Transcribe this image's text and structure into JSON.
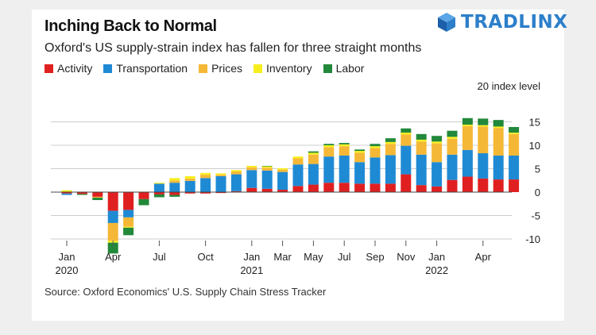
{
  "title": "Inching Back to Normal",
  "subtitle": "Oxford's US supply-strain index has fallen for three straight months",
  "source": "Source: Oxford Economics' U.S. Supply Chain Stress Tracker",
  "logo": {
    "text": "TRADLINX",
    "icon": "cube-logo-icon"
  },
  "colors": {
    "Activity": "#e02020",
    "Transportation": "#1f8ad4",
    "Prices": "#f5b836",
    "Inventory": "#f7ee1e",
    "Labor": "#22883a",
    "axis": "#cccccc",
    "zero": "#444444"
  },
  "legend": [
    "Activity",
    "Transportation",
    "Prices",
    "Inventory",
    "Labor"
  ],
  "chart_data": {
    "type": "bar",
    "stacked": true,
    "title": "Inching Back to Normal",
    "subtitle": "Oxford's US supply-strain index has fallen for three straight months",
    "ylabel": "20 index level",
    "ylim": [
      -11,
      16
    ],
    "yticks": [
      15,
      10,
      5,
      0,
      -5,
      -10
    ],
    "grid": true,
    "legend_position": "top-left",
    "x_tick_labels": [
      {
        "month": 0,
        "label": "Jan",
        "year": "2020"
      },
      {
        "month": 3,
        "label": "Apr"
      },
      {
        "month": 6,
        "label": "Jul"
      },
      {
        "month": 9,
        "label": "Oct"
      },
      {
        "month": 12,
        "label": "Jan",
        "year": "2021"
      },
      {
        "month": 14,
        "label": "Mar"
      },
      {
        "month": 16,
        "label": "May"
      },
      {
        "month": 18,
        "label": "Jul"
      },
      {
        "month": 20,
        "label": "Sep"
      },
      {
        "month": 22,
        "label": "Nov"
      },
      {
        "month": 24,
        "label": "Jan",
        "year": "2022"
      },
      {
        "month": 27,
        "label": "Apr"
      }
    ],
    "categories": [
      "2020-01",
      "2020-02",
      "2020-03",
      "2020-04",
      "2020-05",
      "2020-06",
      "2020-07",
      "2020-08",
      "2020-09",
      "2020-10",
      "2020-11",
      "2020-12",
      "2021-01",
      "2021-02",
      "2021-03",
      "2021-04",
      "2021-05",
      "2021-06",
      "2021-07",
      "2021-08",
      "2021-09",
      "2021-10",
      "2021-11",
      "2021-12",
      "2022-01",
      "2022-02",
      "2022-03",
      "2022-04",
      "2022-05",
      "2022-06"
    ],
    "series": [
      {
        "name": "Activity",
        "values": [
          -0.3,
          -0.4,
          -1.0,
          -4.0,
          -3.8,
          -1.5,
          -0.5,
          -0.6,
          -0.3,
          -0.3,
          -0.2,
          0.2,
          0.9,
          0.7,
          0.5,
          1.3,
          1.6,
          2.0,
          2.0,
          1.8,
          1.8,
          1.8,
          3.8,
          1.5,
          1.2,
          2.6,
          3.3,
          2.9,
          2.7,
          2.7
        ]
      },
      {
        "name": "Transportation",
        "values": [
          -0.3,
          0.0,
          0.0,
          -2.6,
          -1.6,
          0.0,
          1.8,
          2.0,
          2.4,
          3.0,
          3.4,
          3.6,
          3.8,
          3.9,
          3.8,
          4.6,
          4.4,
          5.6,
          5.8,
          4.6,
          5.6,
          6.1,
          6.1,
          6.5,
          5.2,
          5.4,
          5.7,
          5.4,
          5.1,
          5.1
        ]
      },
      {
        "name": "Prices",
        "values": [
          0.0,
          0.0,
          -0.2,
          -3.8,
          -2.0,
          0.0,
          0.0,
          0.5,
          0.5,
          0.7,
          0.3,
          0.6,
          0.6,
          0.6,
          0.5,
          1.3,
          2.0,
          2.0,
          2.0,
          2.0,
          2.0,
          2.4,
          2.4,
          2.8,
          4.0,
          3.4,
          5.1,
          5.7,
          5.9,
          4.6
        ]
      },
      {
        "name": "Inventory",
        "values": [
          0.4,
          0.0,
          0.0,
          -0.4,
          -0.2,
          0.1,
          0.2,
          0.5,
          0.5,
          0.4,
          0.3,
          0.3,
          0.3,
          0.3,
          0.3,
          0.4,
          0.4,
          0.4,
          0.4,
          0.4,
          0.4,
          0.4,
          0.4,
          0.4,
          0.4,
          0.4,
          0.3,
          0.3,
          0.3,
          0.3
        ]
      },
      {
        "name": "Labor",
        "values": [
          0.0,
          -0.2,
          -0.5,
          -2.3,
          -1.6,
          -1.3,
          -0.6,
          -0.4,
          0.0,
          0.0,
          0.0,
          0.0,
          0.0,
          0.1,
          0.0,
          0.0,
          0.3,
          0.3,
          0.3,
          0.3,
          0.5,
          0.8,
          0.9,
          1.2,
          1.2,
          1.3,
          1.4,
          1.4,
          1.4,
          1.2
        ]
      }
    ]
  }
}
